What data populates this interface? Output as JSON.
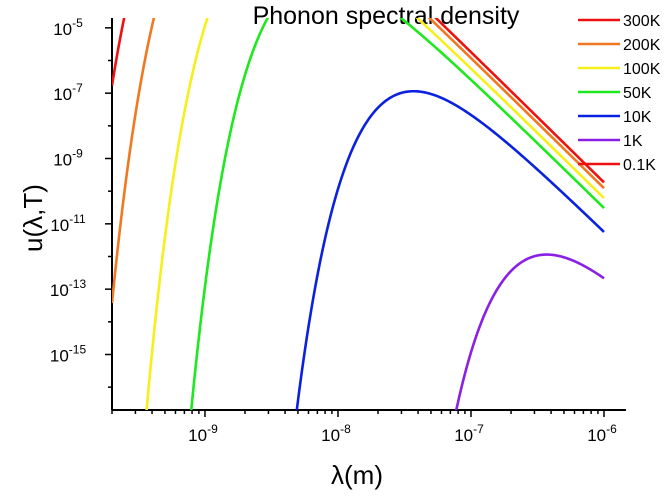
{
  "chart_data": {
    "type": "line",
    "title": "Phonon spectral density",
    "xlabel": "λ(m)",
    "ylabel": "u(λ,T)",
    "x_scale": "log",
    "y_scale": "log",
    "xlim": [
      2e-10,
      1e-06
    ],
    "ylim": [
      2e-17,
      2e-05
    ],
    "x_ticks": [
      {
        "value": 1e-09,
        "base": "10",
        "exp": "-9"
      },
      {
        "value": 1e-08,
        "base": "10",
        "exp": "-8"
      },
      {
        "value": 1e-07,
        "base": "10",
        "exp": "-7"
      },
      {
        "value": 1e-06,
        "base": "10",
        "exp": "-6"
      }
    ],
    "y_ticks": [
      {
        "value": 1e-15,
        "base": "10",
        "exp": "-15"
      },
      {
        "value": 1e-13,
        "base": "10",
        "exp": "-13"
      },
      {
        "value": 1e-11,
        "base": "10",
        "exp": "-11"
      },
      {
        "value": 1e-09,
        "base": "10",
        "exp": "-9"
      },
      {
        "value": 1e-07,
        "base": "10",
        "exp": "-7"
      },
      {
        "value": 1e-05,
        "base": "10",
        "exp": "-5"
      }
    ],
    "grid": false,
    "legend_position": "top-right",
    "series": [
      {
        "name": "300K",
        "color": "#ee1111",
        "T": 300
      },
      {
        "name": "200K",
        "color": "#f07820",
        "T": 200
      },
      {
        "name": "100K",
        "color": "#f5f01a",
        "T": 100
      },
      {
        "name": "50K",
        "color": "#1ee81e",
        "T": 50
      },
      {
        "name": "10K",
        "color": "#0a22e0",
        "T": 10
      },
      {
        "name": "1K",
        "color": "#8a20e6",
        "T": 1
      },
      {
        "name": "0.1K",
        "color": "#ee1111",
        "T": 0.1
      }
    ]
  }
}
